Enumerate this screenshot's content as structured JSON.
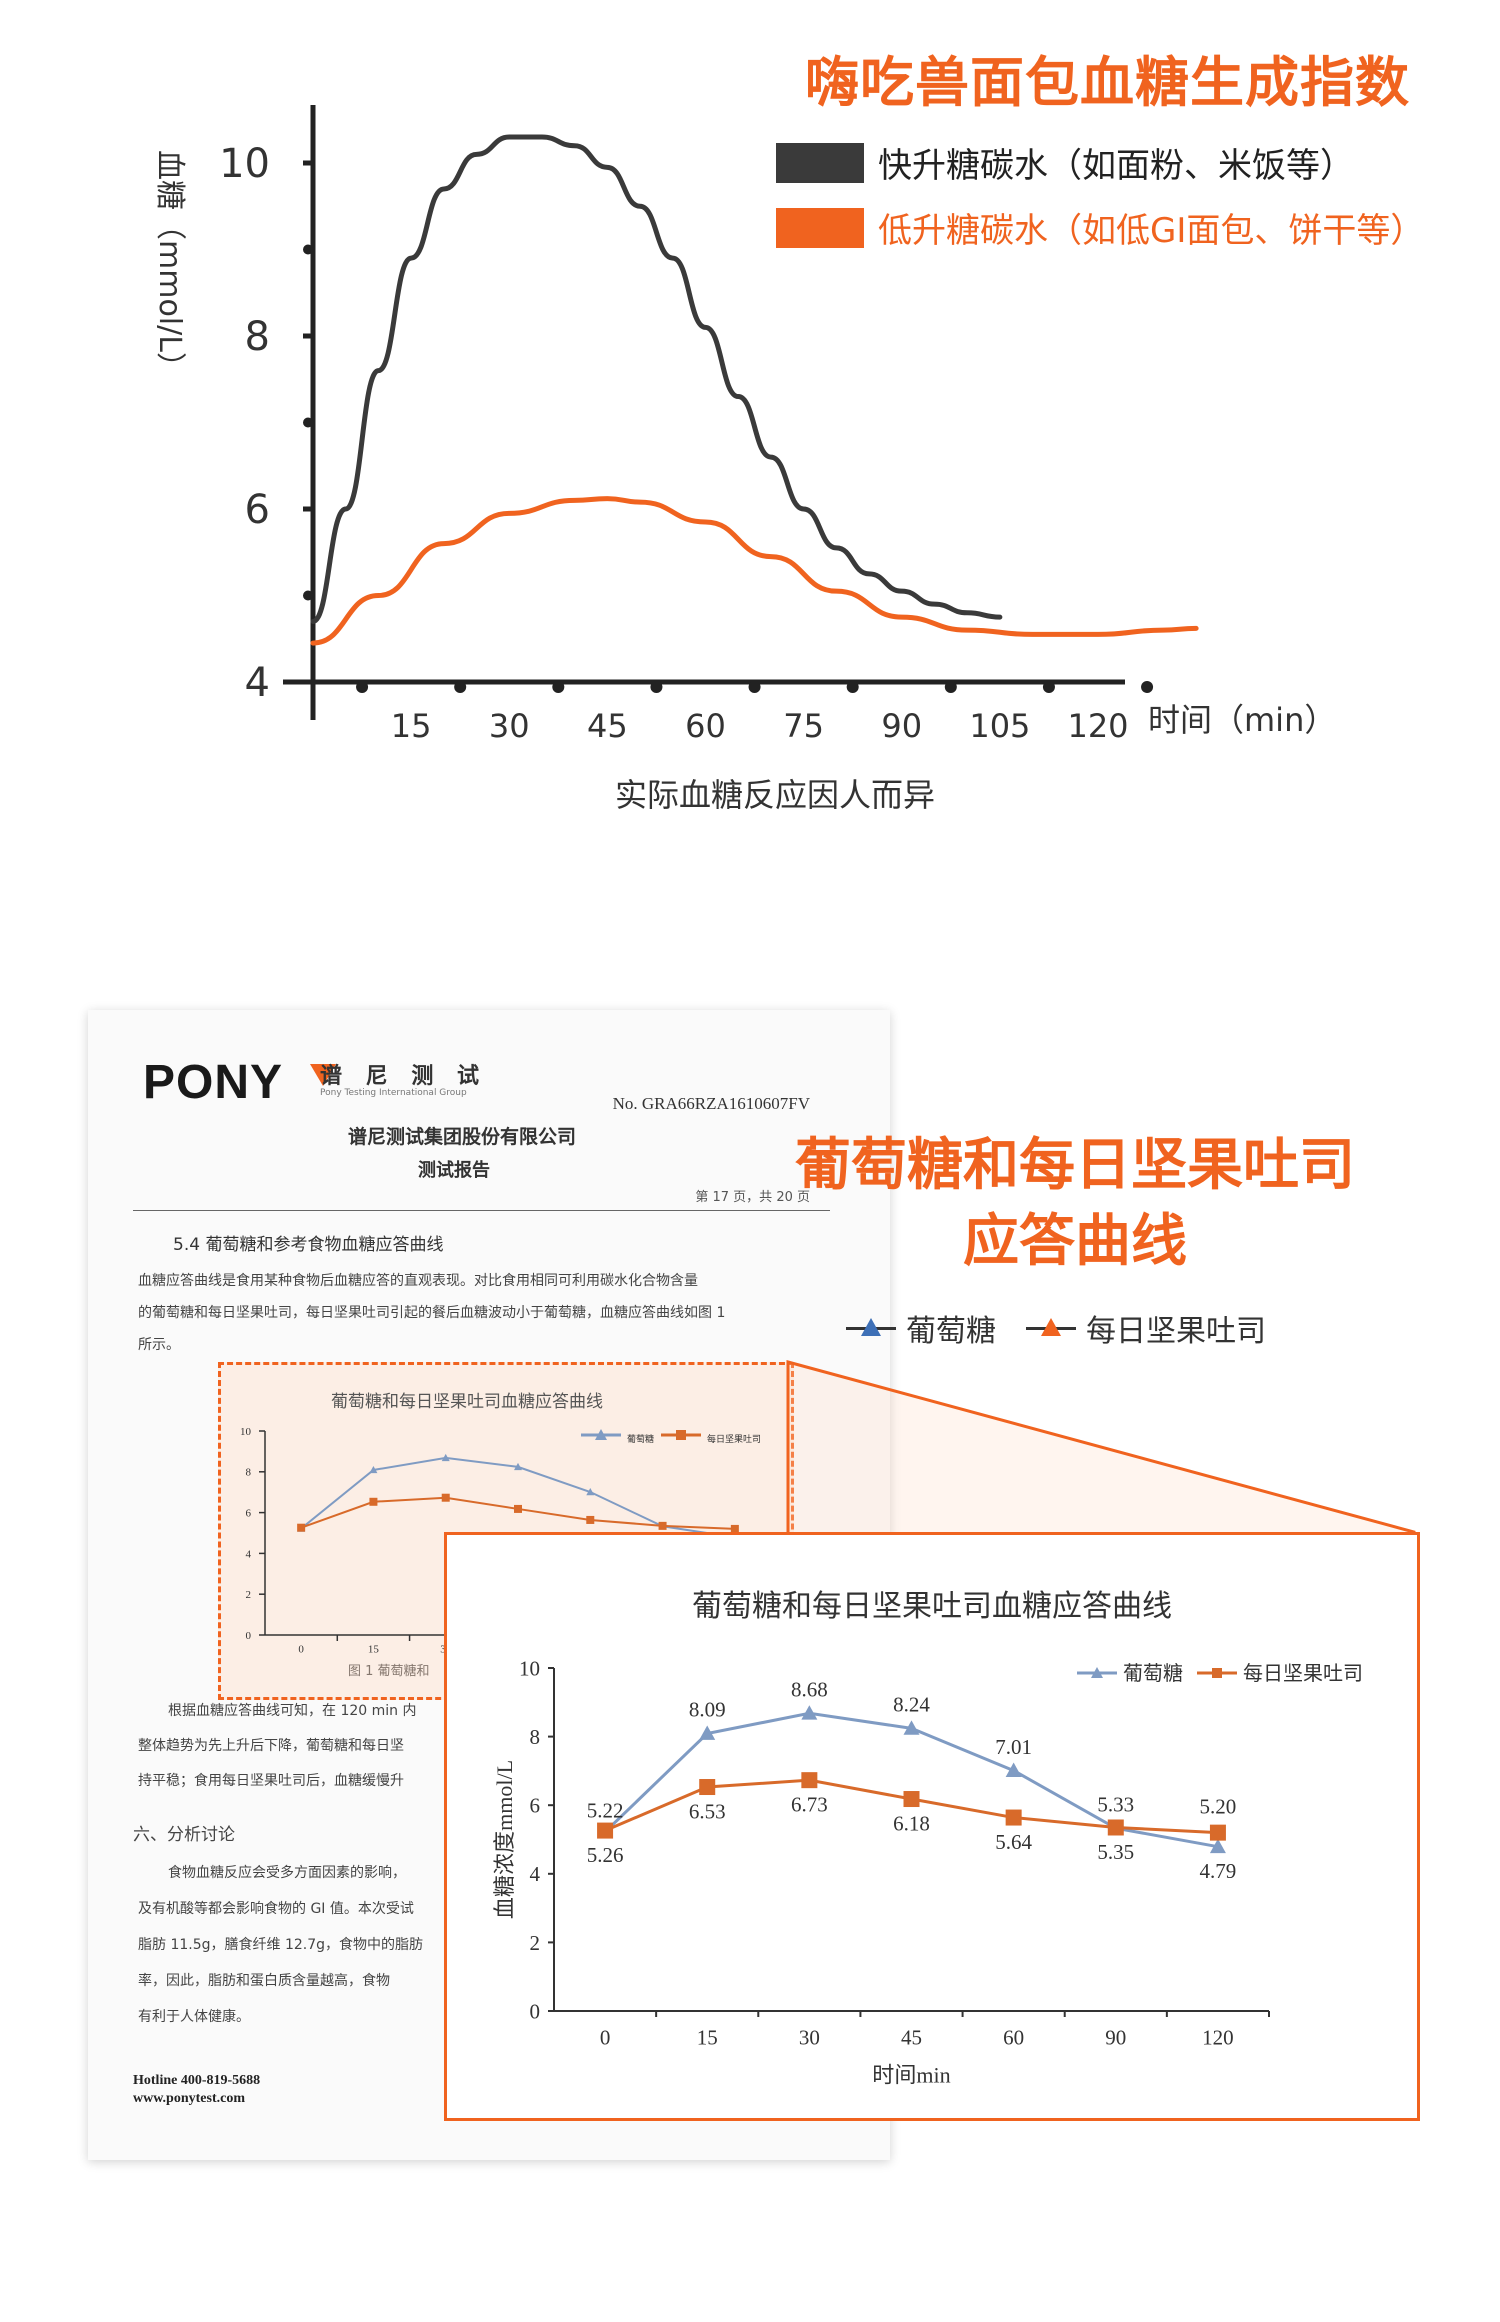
{
  "top_chart": {
    "title": "嗨吃兽面包血糖生成指数",
    "legend": [
      {
        "label": "快升糖碳水（如面粉、米饭等）",
        "color": "#3a3a3a"
      },
      {
        "label": "低升糖碳水（如低GI面包、饼干等）",
        "color": "#f0631f"
      }
    ],
    "ylabel": "血糖（mmol/L）",
    "xlabel": "时间（min）",
    "caption": "实际血糖反应因人而异"
  },
  "report": {
    "logo": "PONY",
    "brand_cn": "谱 尼 测 试",
    "brand_en": "Pony Testing International Group",
    "report_no": "No. GRA66RZA1610607FV",
    "company": "谱尼测试集团股份有限公司",
    "doc_type": "测试报告",
    "page": "第 17 页，共 20 页",
    "section_title": "5.4 葡萄糖和参考食物血糖应答曲线",
    "para1": "血糖应答曲线是食用某种食物后血糖应答的直观表现。对比食用相同可利用碳水化合物含量",
    "para2": "的葡萄糖和每日坚果吐司，每日坚果吐司引起的餐后血糖波动小于葡萄糖，血糖应答曲线如图 1",
    "para3": "所示。",
    "fig_caption": "图 1  葡萄糖和",
    "text_b1": "根据血糖应答曲线可知，在 120 min 内",
    "text_b2": "整体趋势为先上升后下降，葡萄糖和每日坚",
    "text_b3": "持平稳；食用每日坚果吐司后，血糖缓慢升",
    "text_s_title": "六、分析讨论",
    "text_s1": "食物血糖反应会受多方面因素的影响，",
    "text_s2": "及有机酸等都会影响食物的 GI 值。本次受试",
    "text_s3": "脂肪 11.5g，膳食纤维 12.7g，食物中的脂肪",
    "text_s4": "率，因此，脂肪和蛋白质含量越高，食物",
    "text_s5": "有利于人体健康。",
    "hotline": "Hotline 400-819-5688",
    "website": "www.ponytest.com"
  },
  "heading": {
    "line1": "葡萄糖和每日坚果吐司",
    "line2": "应答曲线"
  },
  "key": [
    {
      "label": "葡萄糖",
      "color": "#3d6fb6"
    },
    {
      "label": "每日坚果吐司",
      "color": "#f0631f"
    }
  ],
  "chart_data": [
    {
      "type": "line",
      "title": "嗨吃兽面包血糖生成指数",
      "xlabel": "时间（min）",
      "ylabel": "血糖（mmol/L）",
      "xlim": [
        0,
        135
      ],
      "ylim": [
        4,
        10
      ],
      "xticks": [
        "15",
        "30",
        "45",
        "60",
        "75",
        "90",
        "105",
        "120"
      ],
      "yticks": [
        "4",
        "6",
        "8",
        "10"
      ],
      "series": [
        {
          "name": "快升糖碳水（如面粉、米饭等）",
          "color": "#3a3a3a",
          "x": [
            0,
            5,
            10,
            15,
            20,
            25,
            30,
            35,
            40,
            45,
            50,
            55,
            60,
            65,
            70,
            75,
            80,
            85,
            90,
            95,
            100,
            105
          ],
          "y": [
            4.7,
            6.0,
            7.6,
            8.9,
            9.7,
            10.1,
            10.3,
            10.3,
            10.2,
            9.95,
            9.5,
            8.9,
            8.1,
            7.3,
            6.6,
            6.0,
            5.55,
            5.25,
            5.05,
            4.9,
            4.8,
            4.75
          ]
        },
        {
          "name": "低升糖碳水（如低GI面包、饼干等）",
          "color": "#f0631f",
          "x": [
            0,
            10,
            20,
            30,
            40,
            45,
            50,
            60,
            70,
            80,
            90,
            100,
            110,
            120,
            130,
            135
          ],
          "y": [
            4.45,
            5.0,
            5.6,
            5.95,
            6.1,
            6.12,
            6.08,
            5.85,
            5.45,
            5.05,
            4.75,
            4.6,
            4.55,
            4.55,
            4.6,
            4.62
          ]
        }
      ]
    },
    {
      "type": "line",
      "title": "葡萄糖和每日坚果吐司血糖应答曲线",
      "xlabel": "时间min",
      "ylabel": "血糖浓度mmol/L",
      "categories": [
        "0",
        "15",
        "30",
        "45",
        "60",
        "90",
        "120"
      ],
      "ylim": [
        0,
        10
      ],
      "yticks": [
        "0",
        "2",
        "4",
        "6",
        "8",
        "10"
      ],
      "series": [
        {
          "name": "葡萄糖",
          "color": "#7f9bc3",
          "values": [
            5.22,
            8.09,
            8.68,
            8.24,
            7.01,
            5.33,
            4.79
          ],
          "labels": [
            "5.22",
            "8.09",
            "8.68",
            "8.24",
            "7.01",
            "5.33",
            "4.79"
          ]
        },
        {
          "name": "每日坚果吐司",
          "color": "#d86a2a",
          "values": [
            5.26,
            6.53,
            6.73,
            6.18,
            5.64,
            5.35,
            5.2
          ],
          "labels": [
            "5.26",
            "6.53",
            "6.73",
            "6.18",
            "5.64",
            "5.35",
            "5.20"
          ]
        }
      ]
    }
  ]
}
